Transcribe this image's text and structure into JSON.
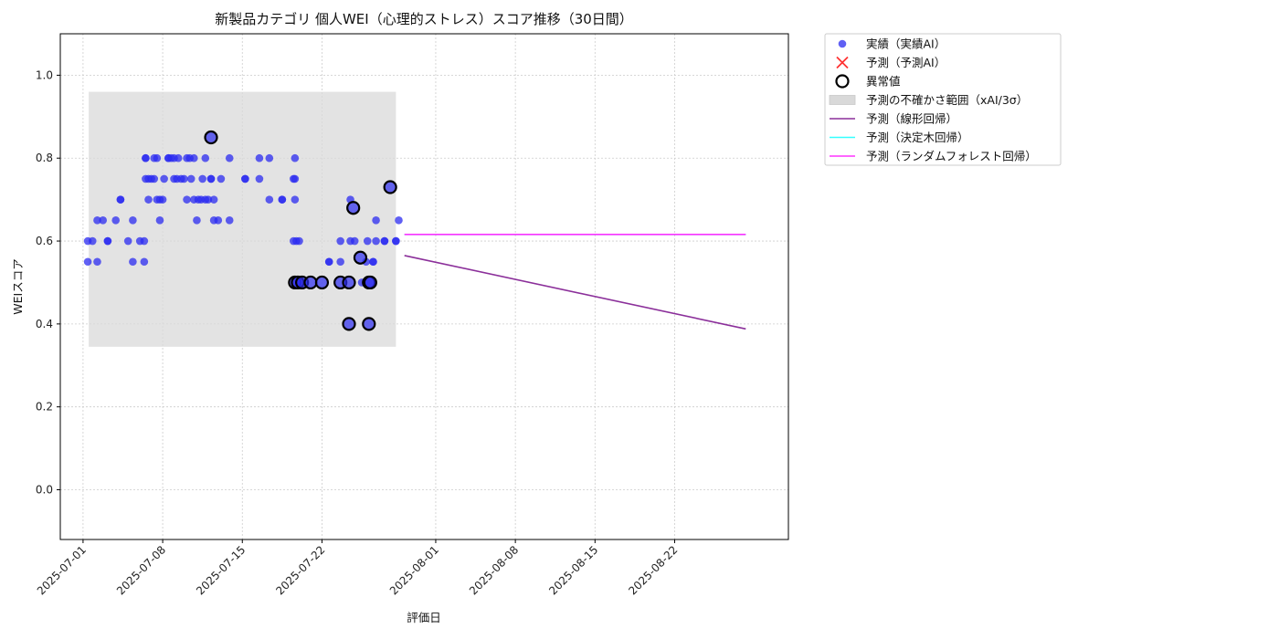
{
  "chart_data": {
    "type": "scatter",
    "title": "新製品カテゴリ 個人WEI（心理的ストレス）スコア推移（30日間）",
    "xlabel": "評価日",
    "ylabel": "WEIスコア",
    "xlim": [
      "2025-06-29",
      "2025-09-01"
    ],
    "ylim": [
      -0.12,
      1.1
    ],
    "xticks": [
      "2025-07-01",
      "2025-07-08",
      "2025-07-15",
      "2025-07-22",
      "2025-08-01",
      "2025-08-08",
      "2025-08-15",
      "2025-08-22"
    ],
    "yticks": [
      "0.0",
      "0.2",
      "0.4",
      "0.6",
      "0.8",
      "1.0"
    ],
    "grid": true,
    "legend_position": "outside-right-top",
    "colors": {
      "actual": "#2b2bf0",
      "predicted": "#ff3333",
      "anomaly_edge": "#000000",
      "band": "#d9d9d9",
      "linear": "#8b2f9a",
      "tree": "#33ffff",
      "forest": "#ff33ff"
    },
    "legend": [
      {
        "key": "actual",
        "label": "実績（実績AI）"
      },
      {
        "key": "predicted",
        "label": "予測（予測AI）"
      },
      {
        "key": "anomaly",
        "label": "異常値"
      },
      {
        "key": "band",
        "label": "予測の不確かさ範囲（xAI/3σ）"
      },
      {
        "key": "linear",
        "label": "予測（線形回帰）"
      },
      {
        "key": "tree",
        "label": "予測（決定木回帰）"
      },
      {
        "key": "forest",
        "label": "予測（ランダムフォレスト回帰）"
      }
    ],
    "uncertainty_band": {
      "x": [
        "2025-07-01 12:00",
        "2025-07-28 12:00"
      ],
      "y": [
        0.345,
        0.96
      ]
    },
    "series": [
      {
        "key": "actual",
        "points": [
          [
            "2025-07-01 10:00",
            0.55
          ],
          [
            "2025-07-01 10:00",
            0.6
          ],
          [
            "2025-07-01 20:00",
            0.6
          ],
          [
            "2025-07-02 06:00",
            0.55
          ],
          [
            "2025-07-02 06:00",
            0.65
          ],
          [
            "2025-07-02 18:00",
            0.65
          ],
          [
            "2025-07-03 04:00",
            0.6
          ],
          [
            "2025-07-03 04:00",
            0.6
          ],
          [
            "2025-07-03 21:00",
            0.65
          ],
          [
            "2025-07-04 07:00",
            0.7
          ],
          [
            "2025-07-04 07:00",
            0.7
          ],
          [
            "2025-07-04 23:00",
            0.6
          ],
          [
            "2025-07-05 09:00",
            0.55
          ],
          [
            "2025-07-05 09:00",
            0.65
          ],
          [
            "2025-07-06 00:00",
            0.6
          ],
          [
            "2025-07-06 09:00",
            0.55
          ],
          [
            "2025-07-06 09:00",
            0.6
          ],
          [
            "2025-07-06 12:00",
            0.75
          ],
          [
            "2025-07-06 12:00",
            0.8
          ],
          [
            "2025-07-06 12:00",
            0.8
          ],
          [
            "2025-07-06 18:00",
            0.75
          ],
          [
            "2025-07-06 18:00",
            0.7
          ],
          [
            "2025-07-07 00:00",
            0.75
          ],
          [
            "2025-07-07 06:00",
            0.8
          ],
          [
            "2025-07-07 06:00",
            0.75
          ],
          [
            "2025-07-07 12:00",
            0.7
          ],
          [
            "2025-07-07 12:00",
            0.8
          ],
          [
            "2025-07-07 18:00",
            0.65
          ],
          [
            "2025-07-07 18:00",
            0.7
          ],
          [
            "2025-07-08 00:00",
            0.7
          ],
          [
            "2025-07-08 03:00",
            0.75
          ],
          [
            "2025-07-08 12:00",
            0.8
          ],
          [
            "2025-07-08 12:00",
            0.8
          ],
          [
            "2025-07-08 18:00",
            0.8
          ],
          [
            "2025-07-09 00:00",
            0.75
          ],
          [
            "2025-07-09 00:00",
            0.8
          ],
          [
            "2025-07-09 06:00",
            0.75
          ],
          [
            "2025-07-09 09:00",
            0.8
          ],
          [
            "2025-07-09 15:00",
            0.75
          ],
          [
            "2025-07-09 21:00",
            0.75
          ],
          [
            "2025-07-10 03:00",
            0.8
          ],
          [
            "2025-07-10 03:00",
            0.7
          ],
          [
            "2025-07-10 09:00",
            0.8
          ],
          [
            "2025-07-10 12:00",
            0.75
          ],
          [
            "2025-07-10 18:00",
            0.8
          ],
          [
            "2025-07-10 18:00",
            0.7
          ],
          [
            "2025-07-11 00:00",
            0.65
          ],
          [
            "2025-07-11 03:00",
            0.7
          ],
          [
            "2025-07-11 09:00",
            0.7
          ],
          [
            "2025-07-11 12:00",
            0.75
          ],
          [
            "2025-07-11 18:00",
            0.7
          ],
          [
            "2025-07-11 18:00",
            0.8
          ],
          [
            "2025-07-12 00:00",
            0.7
          ],
          [
            "2025-07-12 06:00",
            0.75
          ],
          [
            "2025-07-12 06:00",
            0.75
          ],
          [
            "2025-07-12 12:00",
            0.65
          ],
          [
            "2025-07-12 12:00",
            0.7
          ],
          [
            "2025-07-12 21:00",
            0.65
          ],
          [
            "2025-07-13 03:00",
            0.75
          ],
          [
            "2025-07-13 21:00",
            0.65
          ],
          [
            "2025-07-13 21:00",
            0.8
          ],
          [
            "2025-07-15 06:00",
            0.75
          ],
          [
            "2025-07-15 06:00",
            0.75
          ],
          [
            "2025-07-16 12:00",
            0.75
          ],
          [
            "2025-07-16 12:00",
            0.8
          ],
          [
            "2025-07-17 09:00",
            0.8
          ],
          [
            "2025-07-17 09:00",
            0.7
          ],
          [
            "2025-07-18 12:00",
            0.7
          ],
          [
            "2025-07-18 12:00",
            0.7
          ],
          [
            "2025-07-19 12:00",
            0.6
          ],
          [
            "2025-07-19 12:00",
            0.75
          ],
          [
            "2025-07-19 15:00",
            0.75
          ],
          [
            "2025-07-19 15:00",
            0.8
          ],
          [
            "2025-07-19 15:00",
            0.7
          ],
          [
            "2025-07-19 18:00",
            0.6
          ],
          [
            "2025-07-20 00:00",
            0.6
          ],
          [
            "2025-07-22 15:00",
            0.55
          ],
          [
            "2025-07-22 15:00",
            0.55
          ],
          [
            "2025-07-23 15:00",
            0.6
          ],
          [
            "2025-07-23 15:00",
            0.55
          ],
          [
            "2025-07-24 12:00",
            0.6
          ],
          [
            "2025-07-24 12:00",
            0.7
          ],
          [
            "2025-07-24 21:00",
            0.6
          ],
          [
            "2025-07-25 12:00",
            0.5
          ],
          [
            "2025-07-25 21:00",
            0.55
          ],
          [
            "2025-07-26 00:00",
            0.6
          ],
          [
            "2025-07-26 12:00",
            0.55
          ],
          [
            "2025-07-26 12:00",
            0.55
          ],
          [
            "2025-07-26 18:00",
            0.6
          ],
          [
            "2025-07-26 18:00",
            0.65
          ],
          [
            "2025-07-27 12:00",
            0.6
          ],
          [
            "2025-07-27 12:00",
            0.6
          ],
          [
            "2025-07-28 12:00",
            0.6
          ],
          [
            "2025-07-28 12:00",
            0.6
          ],
          [
            "2025-07-28 18:00",
            0.65
          ]
        ]
      },
      {
        "key": "anomaly",
        "points": [
          [
            "2025-07-12 06:00",
            0.85
          ],
          [
            "2025-07-19 15:00",
            0.5
          ],
          [
            "2025-07-19 21:00",
            0.5
          ],
          [
            "2025-07-20 06:00",
            0.5
          ],
          [
            "2025-07-21 00:00",
            0.5
          ],
          [
            "2025-07-22 00:00",
            0.5
          ],
          [
            "2025-07-23 15:00",
            0.5
          ],
          [
            "2025-07-24 09:00",
            0.5
          ],
          [
            "2025-07-24 09:00",
            0.4
          ],
          [
            "2025-07-24 18:00",
            0.68
          ],
          [
            "2025-07-25 09:00",
            0.56
          ],
          [
            "2025-07-26 03:00",
            0.5
          ],
          [
            "2025-07-26 03:00",
            0.4
          ],
          [
            "2025-07-26 06:00",
            0.5
          ],
          [
            "2025-07-28 00:00",
            0.73
          ]
        ]
      }
    ],
    "lines": [
      {
        "key": "linear",
        "x": [
          "2025-07-29 06:00",
          "2025-08-28 06:00"
        ],
        "y": [
          0.565,
          0.388
        ]
      },
      {
        "key": "tree",
        "x": [
          "2025-07-29 06:00",
          "2025-08-28 06:00"
        ],
        "y": [
          0.616,
          0.616
        ]
      },
      {
        "key": "forest",
        "x": [
          "2025-07-29 06:00",
          "2025-08-28 06:00"
        ],
        "y": [
          0.616,
          0.616
        ]
      }
    ]
  }
}
